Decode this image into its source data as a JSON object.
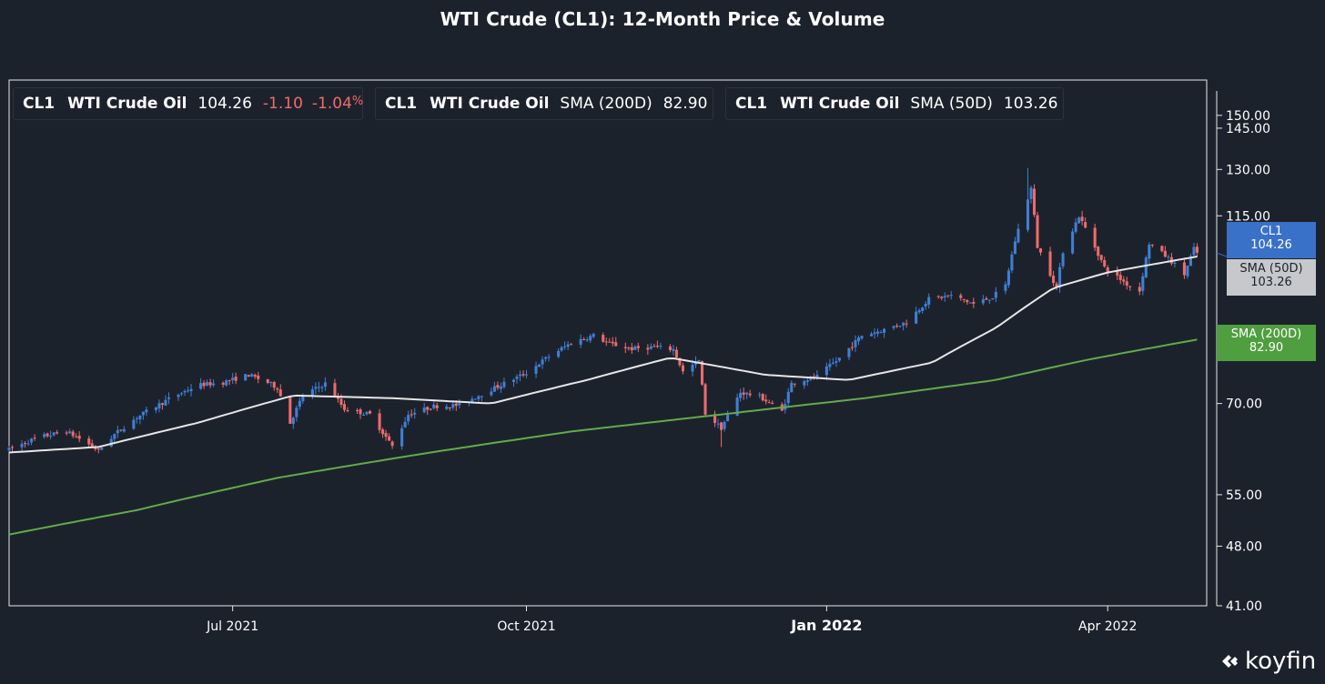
{
  "chart_data": {
    "type": "candlestick",
    "title": "WTI Crude (CL1): 12-Month Price & Volume",
    "x_labels": [
      "Jul 2021",
      "Oct 2021",
      "Jan 2022",
      "Apr 2022"
    ],
    "y_ticks": [
      "150.00",
      "145.00",
      "130.00",
      "115.00",
      "70.00",
      "55.00",
      "48.00",
      "41.00"
    ],
    "y_tick_values": [
      150,
      145,
      130,
      115,
      70,
      55,
      48,
      41
    ],
    "y_scale": "log",
    "ylim": [
      41,
      160
    ],
    "xlim": [
      "2021-04-22",
      "2022-05-02"
    ],
    "grid": false,
    "colors": {
      "up": "#3f7fd6",
      "down": "#ee6b6b",
      "sma50": "#e6e6e6",
      "sma200": "#62ab4c"
    },
    "price_path": [
      [
        "2021-04-22",
        62.0
      ],
      [
        "2021-05-01",
        64.0
      ],
      [
        "2021-05-10",
        65.0
      ],
      [
        "2021-05-15",
        63.5
      ],
      [
        "2021-05-20",
        61.8
      ],
      [
        "2021-05-25",
        64.5
      ],
      [
        "2021-06-01",
        67.5
      ],
      [
        "2021-06-10",
        70.5
      ],
      [
        "2021-06-20",
        73.5
      ],
      [
        "2021-06-28",
        74.0
      ],
      [
        "2021-07-06",
        75.5
      ],
      [
        "2021-07-12",
        74.0
      ],
      [
        "2021-07-15",
        73.0
      ],
      [
        "2021-07-19",
        66.5
      ],
      [
        "2021-07-23",
        71.5
      ],
      [
        "2021-07-30",
        73.8
      ],
      [
        "2021-08-05",
        69.0
      ],
      [
        "2021-08-13",
        68.0
      ],
      [
        "2021-08-20",
        62.5
      ],
      [
        "2021-08-25",
        68.0
      ],
      [
        "2021-09-02",
        69.5
      ],
      [
        "2021-09-10",
        69.7
      ],
      [
        "2021-09-17",
        71.8
      ],
      [
        "2021-09-24",
        73.8
      ],
      [
        "2021-10-01",
        75.9
      ],
      [
        "2021-10-08",
        79.3
      ],
      [
        "2021-10-15",
        82.2
      ],
      [
        "2021-10-22",
        83.8
      ],
      [
        "2021-10-27",
        82.0
      ],
      [
        "2021-11-03",
        80.9
      ],
      [
        "2021-11-10",
        81.3
      ],
      [
        "2021-11-16",
        80.8
      ],
      [
        "2021-11-19",
        76.1
      ],
      [
        "2021-11-24",
        78.4
      ],
      [
        "2021-11-26",
        68.2
      ],
      [
        "2021-12-01",
        65.6
      ],
      [
        "2021-12-07",
        72.1
      ],
      [
        "2021-12-13",
        71.3
      ],
      [
        "2021-12-20",
        68.6
      ],
      [
        "2021-12-23",
        73.8
      ],
      [
        "2021-12-31",
        75.2
      ],
      [
        "2022-01-07",
        78.9
      ],
      [
        "2022-01-14",
        83.8
      ],
      [
        "2022-01-21",
        85.1
      ],
      [
        "2022-01-28",
        86.8
      ],
      [
        "2022-02-04",
        92.3
      ],
      [
        "2022-02-11",
        93.1
      ],
      [
        "2022-02-18",
        91.1
      ],
      [
        "2022-02-24",
        92.8
      ],
      [
        "2022-02-28",
        95.7
      ],
      [
        "2022-03-03",
        107.7
      ],
      [
        "2022-03-08",
        123.7
      ],
      [
        "2022-03-10",
        106.0
      ],
      [
        "2022-03-16",
        95.0
      ],
      [
        "2022-03-18",
        104.7
      ],
      [
        "2022-03-23",
        114.9
      ],
      [
        "2022-03-28",
        105.9
      ],
      [
        "2022-03-31",
        100.3
      ],
      [
        "2022-04-07",
        96.0
      ],
      [
        "2022-04-11",
        94.3
      ],
      [
        "2022-04-14",
        106.9
      ],
      [
        "2022-04-20",
        102.8
      ],
      [
        "2022-04-25",
        98.5
      ],
      [
        "2022-04-28",
        105.4
      ],
      [
        "2022-04-29",
        104.26
      ]
    ],
    "spikes": {
      "2022-03-07": 130.5,
      "2022-03-24": 116.5,
      "2021-12-01": 62.4,
      "2021-08-23": 62.0
    },
    "sma200_points": [
      [
        "2021-04-22",
        49.5
      ],
      [
        "2021-06-01",
        52.8
      ],
      [
        "2021-07-15",
        57.5
      ],
      [
        "2021-09-01",
        61.5
      ],
      [
        "2021-10-15",
        65.0
      ],
      [
        "2021-12-01",
        68.0
      ],
      [
        "2022-01-15",
        71.0
      ],
      [
        "2022-02-25",
        74.5
      ],
      [
        "2022-03-25",
        78.5
      ],
      [
        "2022-04-29",
        82.9
      ]
    ],
    "sma50_points": [
      [
        "2021-04-22",
        61.5
      ],
      [
        "2021-05-20",
        62.4
      ],
      [
        "2021-06-20",
        66.5
      ],
      [
        "2021-07-20",
        71.5
      ],
      [
        "2021-08-20",
        71.0
      ],
      [
        "2021-09-20",
        70.0
      ],
      [
        "2021-10-20",
        74.5
      ],
      [
        "2021-11-15",
        79.0
      ],
      [
        "2021-12-15",
        75.5
      ],
      [
        "2022-01-10",
        74.5
      ],
      [
        "2022-02-05",
        78.0
      ],
      [
        "2022-02-25",
        85.5
      ],
      [
        "2022-03-15",
        95.0
      ],
      [
        "2022-04-01",
        99.0
      ],
      [
        "2022-04-29",
        103.26
      ]
    ],
    "series": [
      {
        "name": "CL1  WTI Crude Oil",
        "last": "104.26",
        "change": "-1.10",
        "change_pct": "-1.04"
      },
      {
        "name": "CL1  WTI Crude Oil  SMA (200D)",
        "last": "82.90"
      },
      {
        "name": "CL1  WTI Crude Oil  SMA (50D)",
        "last": "103.26"
      }
    ]
  },
  "legend": {
    "cl1": {
      "ticker": "CL1",
      "name": "WTI Crude Oil",
      "value": "104.26",
      "change": "-1.10",
      "change_pct": "-1.04",
      "pct_sign": "%"
    },
    "sma200": {
      "ticker": "CL1",
      "name": "WTI Crude Oil",
      "label": "SMA (200D)",
      "value": "82.90"
    },
    "sma50": {
      "ticker": "CL1",
      "name": "WTI Crude Oil",
      "label": "SMA (50D)",
      "value": "103.26"
    }
  },
  "tags": {
    "cl1": {
      "label": "CL1",
      "value": "104.26"
    },
    "sma50": {
      "label": "SMA (50D)",
      "value": "103.26"
    },
    "sma200": {
      "label": "SMA (200D)",
      "value": "82.90"
    }
  },
  "brand": {
    "name": "koyfin"
  }
}
